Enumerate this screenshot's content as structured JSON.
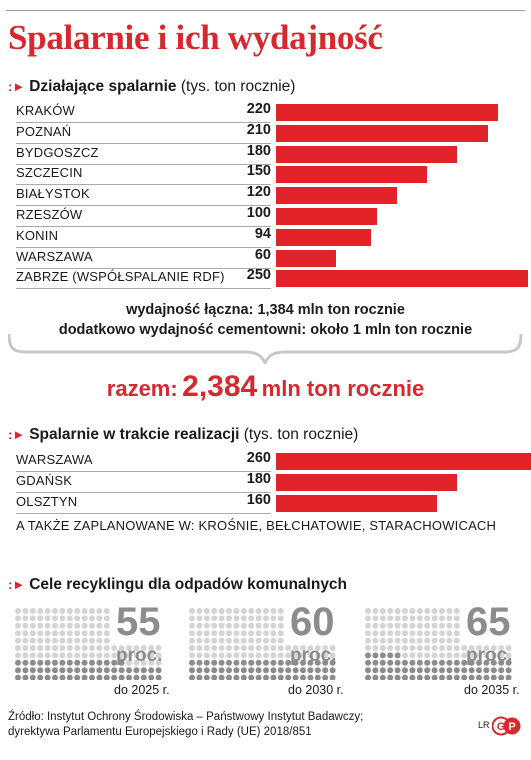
{
  "title": "Spalarnie i ich wydajność",
  "section_active": {
    "title": "Działające spalarnie",
    "unit": "(tys. ton rocznie)"
  },
  "section_planned": {
    "title": "Spalarnie w trakcie realizacji",
    "unit": "(tys. ton rocznie)"
  },
  "section_recycling": {
    "title": "Cele recyklingu dla odpadów komunalnych"
  },
  "summary": {
    "line1": "wydajność łączna: 1,384 mln ton rocznie",
    "line2": "dodatkowo wydajność cementowni: około 1 mln ton rocznie",
    "total_label": "razem:",
    "total_value": "2,384",
    "total_unit": "mln ton rocznie"
  },
  "also_planned": "A TAKŻE ZAPLANOWANE W: KROŚNIE, BEŁCHATOWIE, STARACHOWICACH",
  "source": {
    "line1": "Źródło: Instytut Ochrony Środowiska – Państwowy Instytut Badawczy;",
    "line2": "dyrektywa Parlamentu Europejskiego i Rady (UE) 2018/851"
  },
  "logo": {
    "initials": "LR",
    "brand": "GP"
  },
  "colors": {
    "accent": "#d7282f",
    "bar": "#e3232a",
    "dot_filled": "#8c8c8c",
    "dot_empty": "#d4d4d4"
  },
  "chart_data": [
    {
      "type": "bar",
      "title": "Działające spalarnie",
      "ylabel": "(tys. ton rocznie)",
      "categories": [
        "KRAKÓW",
        "POZNAŃ",
        "BYDGOSZCZ",
        "SZCZECIN",
        "BIAŁYSTOK",
        "RZESZÓW",
        "KONIN",
        "WARSZAWA",
        "ZABRZE (WSPÓŁSPALANIE RDF)"
      ],
      "values": [
        220,
        210,
        180,
        150,
        120,
        100,
        94,
        60,
        250
      ],
      "value_labels": [
        "220",
        "210",
        "180",
        "150",
        "120",
        "100",
        "94",
        "60",
        "250"
      ],
      "orientation": "horizontal",
      "xlim": [
        0,
        260
      ]
    },
    {
      "type": "bar",
      "title": "Spalarnie w trakcie realizacji",
      "ylabel": "(tys. ton rocznie)",
      "categories": [
        "WARSZAWA",
        "GDAŃSK",
        "OLSZTYN"
      ],
      "values": [
        260,
        180,
        160
      ],
      "value_labels": [
        "260",
        "180",
        "160"
      ],
      "orientation": "horizontal",
      "xlim": [
        0,
        260
      ]
    },
    {
      "type": "waffle",
      "title": "Cele recyklingu dla odpadów komunalnych",
      "items": [
        {
          "percent": 55,
          "percent_label": "55",
          "unit": "proc.",
          "year_label": "do 2025 r."
        },
        {
          "percent": 60,
          "percent_label": "60",
          "unit": "proc.",
          "year_label": "do 2030 r."
        },
        {
          "percent": 65,
          "percent_label": "65",
          "unit": "proc.",
          "year_label": "do 2035 r."
        }
      ]
    }
  ]
}
